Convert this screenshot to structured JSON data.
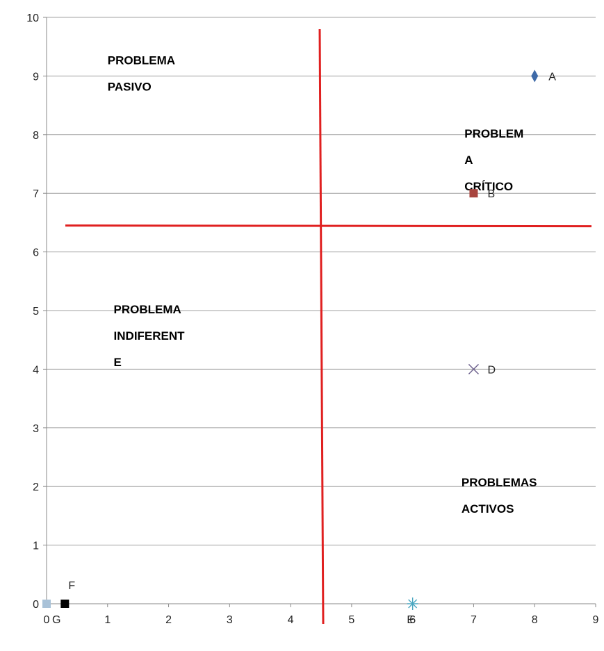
{
  "chart_data": {
    "type": "scatter",
    "title": "",
    "xlabel": "",
    "ylabel": "",
    "xlim": [
      0,
      9
    ],
    "ylim": [
      0,
      10
    ],
    "x_ticks": [
      "0",
      "1",
      "2",
      "3",
      "4",
      "5",
      "6",
      "7",
      "8",
      "9"
    ],
    "y_ticks": [
      "0",
      "1",
      "2",
      "3",
      "4",
      "5",
      "6",
      "7",
      "8",
      "9",
      "10"
    ],
    "grid": "horizontal",
    "points": [
      {
        "label": "A",
        "x": 8,
        "y": 9,
        "marker": "diamond",
        "color": "#3e6aa8"
      },
      {
        "label": "B",
        "x": 7,
        "y": 7,
        "marker": "square",
        "color": "#a8453f"
      },
      {
        "label": "D",
        "x": 7,
        "y": 4,
        "marker": "x",
        "color": "#6b5f8c"
      },
      {
        "label": "E",
        "x": 6,
        "y": 0,
        "marker": "star",
        "color": "#4aa6c0"
      },
      {
        "label": "G",
        "x": 0,
        "y": 0,
        "marker": "square",
        "color": "#a9c2d8"
      },
      {
        "label": "F",
        "x": 0.3,
        "y": 0,
        "marker": "square",
        "color": "#000000"
      }
    ],
    "divider_lines": [
      {
        "orientation": "vertical",
        "value": 4.5,
        "color": "#e02020"
      },
      {
        "orientation": "horizontal",
        "value": 6.45,
        "color": "#e02020"
      }
    ],
    "quadrant_labels": [
      {
        "lines": [
          "PROBLEMA",
          "PASIVO"
        ],
        "x": 1.0,
        "y": 9.2
      },
      {
        "lines": [
          "PROBLEM",
          "A",
          "CRÍTICO"
        ],
        "x": 6.85,
        "y": 7.95
      },
      {
        "lines": [
          "PROBLEMA",
          "INDIFERENT",
          "E"
        ],
        "x": 1.1,
        "y": 4.95
      },
      {
        "lines": [
          "PROBLEMAS",
          "ACTIVOS"
        ],
        "x": 6.8,
        "y": 2.0
      }
    ]
  }
}
